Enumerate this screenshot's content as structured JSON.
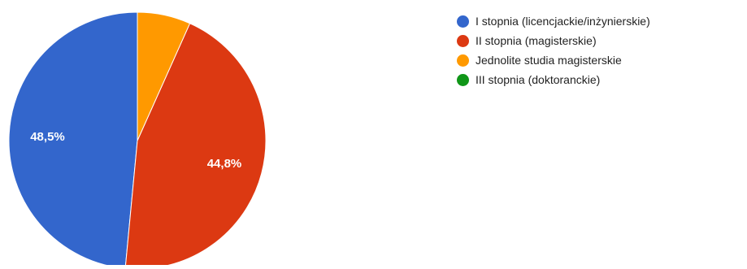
{
  "chart_data": {
    "type": "pie",
    "categories": [
      "I stopnia (licencjackie/inżynierskie)",
      "II stopnia (magisterskie)",
      "Jednolite studia magisterskie",
      "III stopnia (doktoranckie)"
    ],
    "values": [
      48.5,
      44.8,
      6.7,
      0
    ],
    "data_labels": [
      "48,5%",
      "44,8%",
      "",
      ""
    ],
    "colors": [
      "#3366cc",
      "#dc3912",
      "#ff9900",
      "#109618"
    ],
    "legend_position": "right",
    "start_angle_degrees": 90,
    "direction": "counterclockwise"
  }
}
